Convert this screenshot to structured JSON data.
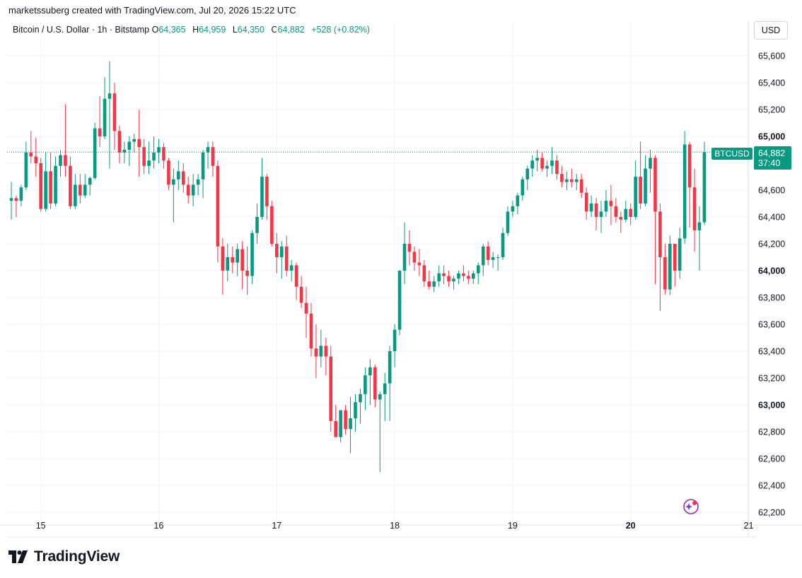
{
  "header": {
    "text": "marketssuberg created with TradingView.com, Jul 20, 2026 15:22 UTC"
  },
  "legend": {
    "symbol": "Bitcoin / U.S. Dollar · 1h · Bitstamp",
    "o_label": "O",
    "o_value": "64,365",
    "h_label": "H",
    "h_value": "64,959",
    "l_label": "L",
    "l_value": "64,350",
    "c_label": "C",
    "c_value": "64,882",
    "change": "+528 (+0.82%)"
  },
  "toolbar": {
    "currency": "USD"
  },
  "price_tag": {
    "symbol": "BTCUSD",
    "price": "64,882",
    "countdown": "37:40"
  },
  "brand": {
    "name": "TradingView"
  },
  "colors": {
    "up": "#089981",
    "down": "#f23645",
    "grid": "#f0f3fa",
    "text": "#131722"
  },
  "chart_data": {
    "type": "candlestick",
    "interval": "1h",
    "ylim": [
      62100,
      65750
    ],
    "y_ticks": [
      {
        "value": 62200,
        "label": "62,200"
      },
      {
        "value": 62400,
        "label": "62,400"
      },
      {
        "value": 62600,
        "label": "62,600"
      },
      {
        "value": 62800,
        "label": "62,800"
      },
      {
        "value": 63000,
        "label": "63,000",
        "bold": true
      },
      {
        "value": 63200,
        "label": "63,200"
      },
      {
        "value": 63400,
        "label": "63,400"
      },
      {
        "value": 63600,
        "label": "63,600"
      },
      {
        "value": 63800,
        "label": "63,800"
      },
      {
        "value": 64000,
        "label": "64,000",
        "bold": true
      },
      {
        "value": 64200,
        "label": "64,200"
      },
      {
        "value": 64400,
        "label": "64,400"
      },
      {
        "value": 64600,
        "label": "64,600"
      },
      {
        "value": 64800,
        "label": "64,800"
      },
      {
        "value": 65000,
        "label": "65,000",
        "bold": true
      },
      {
        "value": 65200,
        "label": "65,200"
      },
      {
        "value": 65400,
        "label": "65,400"
      },
      {
        "value": 65600,
        "label": "65,600"
      }
    ],
    "x_ticks": [
      {
        "index": 6,
        "label": "15"
      },
      {
        "index": 30,
        "label": "16"
      },
      {
        "index": 54,
        "label": "17"
      },
      {
        "index": 78,
        "label": "18"
      },
      {
        "index": 102,
        "label": "19"
      },
      {
        "index": 126,
        "label": "20",
        "bold": true
      },
      {
        "index": 150,
        "label": "21"
      }
    ],
    "last_price": 64882,
    "candles": [
      [
        64520,
        64660,
        64380,
        64540
      ],
      [
        64540,
        64560,
        64400,
        64520
      ],
      [
        64520,
        64640,
        64480,
        64620
      ],
      [
        64620,
        64960,
        64600,
        64880
      ],
      [
        64880,
        65040,
        64800,
        64850
      ],
      [
        64850,
        64990,
        64700,
        64800
      ],
      [
        64800,
        64840,
        64440,
        64460
      ],
      [
        64460,
        64880,
        64440,
        64740
      ],
      [
        64740,
        64880,
        64460,
        64500
      ],
      [
        64500,
        64850,
        64480,
        64780
      ],
      [
        64780,
        64900,
        64700,
        64860
      ],
      [
        64860,
        65240,
        64700,
        64780
      ],
      [
        64780,
        64850,
        64460,
        64480
      ],
      [
        64480,
        64720,
        64460,
        64640
      ],
      [
        64640,
        64720,
        64500,
        64560
      ],
      [
        64560,
        64720,
        64540,
        64640
      ],
      [
        64640,
        64700,
        64560,
        64690
      ],
      [
        64690,
        65100,
        64680,
        65060
      ],
      [
        65060,
        65300,
        64920,
        65000
      ],
      [
        65000,
        65440,
        64980,
        65280
      ],
      [
        65280,
        65560,
        64760,
        65320
      ],
      [
        65320,
        65400,
        64900,
        65040
      ],
      [
        65040,
        65080,
        64800,
        64880
      ],
      [
        64880,
        64960,
        64800,
        64900
      ],
      [
        64900,
        65000,
        64780,
        64960
      ],
      [
        64960,
        65020,
        64880,
        64980
      ],
      [
        64980,
        65200,
        64700,
        64920
      ],
      [
        64920,
        64980,
        64720,
        64780
      ],
      [
        64780,
        64960,
        64720,
        64820
      ],
      [
        64820,
        65000,
        64760,
        64880
      ],
      [
        64880,
        64980,
        64800,
        64920
      ],
      [
        64920,
        64950,
        64760,
        64820
      ],
      [
        64820,
        64840,
        64600,
        64640
      ],
      [
        64640,
        64760,
        64360,
        64680
      ],
      [
        64680,
        64820,
        64600,
        64740
      ],
      [
        64740,
        64800,
        64580,
        64640
      ],
      [
        64640,
        64700,
        64500,
        64560
      ],
      [
        64560,
        64720,
        64480,
        64640
      ],
      [
        64640,
        64720,
        64560,
        64680
      ],
      [
        64680,
        64900,
        64540,
        64880
      ],
      [
        64880,
        64960,
        64760,
        64920
      ],
      [
        64920,
        64960,
        64700,
        64780
      ],
      [
        64780,
        64820,
        64060,
        64180
      ],
      [
        64180,
        64240,
        63820,
        64000
      ],
      [
        64000,
        64200,
        63920,
        64100
      ],
      [
        64100,
        64180,
        63980,
        64060
      ],
      [
        64060,
        64200,
        63960,
        64160
      ],
      [
        64160,
        64220,
        63860,
        64000
      ],
      [
        64000,
        64180,
        63820,
        63960
      ],
      [
        63960,
        64300,
        63900,
        64280
      ],
      [
        64280,
        64500,
        64200,
        64400
      ],
      [
        64400,
        64840,
        64380,
        64700
      ],
      [
        64700,
        64720,
        64380,
        64480
      ],
      [
        64480,
        64520,
        64180,
        64200
      ],
      [
        64200,
        64280,
        63980,
        64100
      ],
      [
        64100,
        64220,
        63940,
        64180
      ],
      [
        64180,
        64260,
        63960,
        64000
      ],
      [
        64000,
        64080,
        63920,
        64040
      ],
      [
        64040,
        64060,
        63780,
        63880
      ],
      [
        63880,
        63960,
        63720,
        63760
      ],
      [
        63760,
        63880,
        63500,
        63680
      ],
      [
        63680,
        63760,
        63360,
        63420
      ],
      [
        63420,
        63600,
        63200,
        63360
      ],
      [
        63360,
        63560,
        63280,
        63440
      ],
      [
        63440,
        63500,
        63220,
        63360
      ],
      [
        63360,
        63440,
        62800,
        62880
      ],
      [
        62880,
        63000,
        62760,
        62760
      ],
      [
        62760,
        62960,
        62720,
        62960
      ],
      [
        62960,
        63000,
        62780,
        62820
      ],
      [
        62820,
        63060,
        62640,
        62900
      ],
      [
        62900,
        63080,
        62800,
        63020
      ],
      [
        63020,
        63120,
        62860,
        63080
      ],
      [
        63080,
        63280,
        62960,
        63220
      ],
      [
        63220,
        63340,
        63000,
        63280
      ],
      [
        63280,
        63300,
        62980,
        63040
      ],
      [
        63040,
        63100,
        62500,
        63080
      ],
      [
        63080,
        63240,
        62880,
        63160
      ],
      [
        63160,
        63440,
        62880,
        63400
      ],
      [
        63400,
        63600,
        63280,
        63560
      ],
      [
        63560,
        64000,
        63520,
        64000
      ],
      [
        64000,
        64360,
        63900,
        64200
      ],
      [
        64200,
        64300,
        64040,
        64140
      ],
      [
        64140,
        64180,
        64000,
        64060
      ],
      [
        64060,
        64160,
        63960,
        64040
      ],
      [
        64040,
        64080,
        63880,
        63920
      ],
      [
        63920,
        64000,
        63860,
        63880
      ],
      [
        63880,
        63960,
        63840,
        63920
      ],
      [
        63920,
        64040,
        63880,
        63980
      ],
      [
        63980,
        64040,
        63900,
        63960
      ],
      [
        63960,
        64000,
        63880,
        63920
      ],
      [
        63920,
        63960,
        63860,
        63940
      ],
      [
        63940,
        64000,
        63900,
        63980
      ],
      [
        63980,
        64040,
        63920,
        63960
      ],
      [
        63960,
        64000,
        63900,
        63940
      ],
      [
        63940,
        64000,
        63900,
        63980
      ],
      [
        63980,
        64060,
        63900,
        64040
      ],
      [
        64040,
        64200,
        63960,
        64180
      ],
      [
        64180,
        64220,
        64040,
        64080
      ],
      [
        64080,
        64140,
        64020,
        64100
      ],
      [
        64100,
        64120,
        64000,
        64100
      ],
      [
        64100,
        64320,
        64080,
        64280
      ],
      [
        64280,
        64480,
        64260,
        64440
      ],
      [
        64440,
        64520,
        64400,
        64480
      ],
      [
        64480,
        64580,
        64420,
        64560
      ],
      [
        64560,
        64700,
        64520,
        64680
      ],
      [
        64680,
        64780,
        64600,
        64760
      ],
      [
        64760,
        64860,
        64700,
        64820
      ],
      [
        64820,
        64900,
        64740,
        64840
      ],
      [
        64840,
        64880,
        64740,
        64760
      ],
      [
        64760,
        64820,
        64700,
        64780
      ],
      [
        64780,
        64920,
        64720,
        64820
      ],
      [
        64820,
        64860,
        64680,
        64720
      ],
      [
        64720,
        64780,
        64620,
        64660
      ],
      [
        64660,
        64740,
        64600,
        64680
      ],
      [
        64680,
        64760,
        64620,
        64660
      ],
      [
        64660,
        64720,
        64600,
        64680
      ],
      [
        64680,
        64720,
        64540,
        64580
      ],
      [
        64580,
        64620,
        64380,
        64440
      ],
      [
        64440,
        64560,
        64400,
        64500
      ],
      [
        64500,
        64540,
        64300,
        64400
      ],
      [
        64400,
        64520,
        64280,
        64440
      ],
      [
        64440,
        64600,
        64400,
        64520
      ],
      [
        64520,
        64640,
        64340,
        64480
      ],
      [
        64480,
        64540,
        64360,
        64400
      ],
      [
        64400,
        64440,
        64280,
        64380
      ],
      [
        64380,
        64520,
        64360,
        64460
      ],
      [
        64460,
        64500,
        64340,
        64400
      ],
      [
        64400,
        64820,
        64380,
        64700
      ],
      [
        64700,
        64960,
        64460,
        64500
      ],
      [
        64500,
        64860,
        64480,
        64760
      ],
      [
        64760,
        64900,
        64580,
        64840
      ],
      [
        64840,
        64860,
        63900,
        64440
      ],
      [
        64440,
        64500,
        63700,
        64100
      ],
      [
        64100,
        64200,
        63820,
        63860
      ],
      [
        63860,
        64260,
        63820,
        64200
      ],
      [
        64200,
        64200,
        63880,
        64000
      ],
      [
        64000,
        64320,
        63940,
        64240
      ],
      [
        64240,
        65040,
        64200,
        64940
      ],
      [
        64940,
        64960,
        64320,
        64620
      ],
      [
        64620,
        64760,
        64140,
        64300
      ],
      [
        64300,
        64480,
        64000,
        64360
      ],
      [
        64360,
        64960,
        64340,
        64882
      ]
    ]
  }
}
